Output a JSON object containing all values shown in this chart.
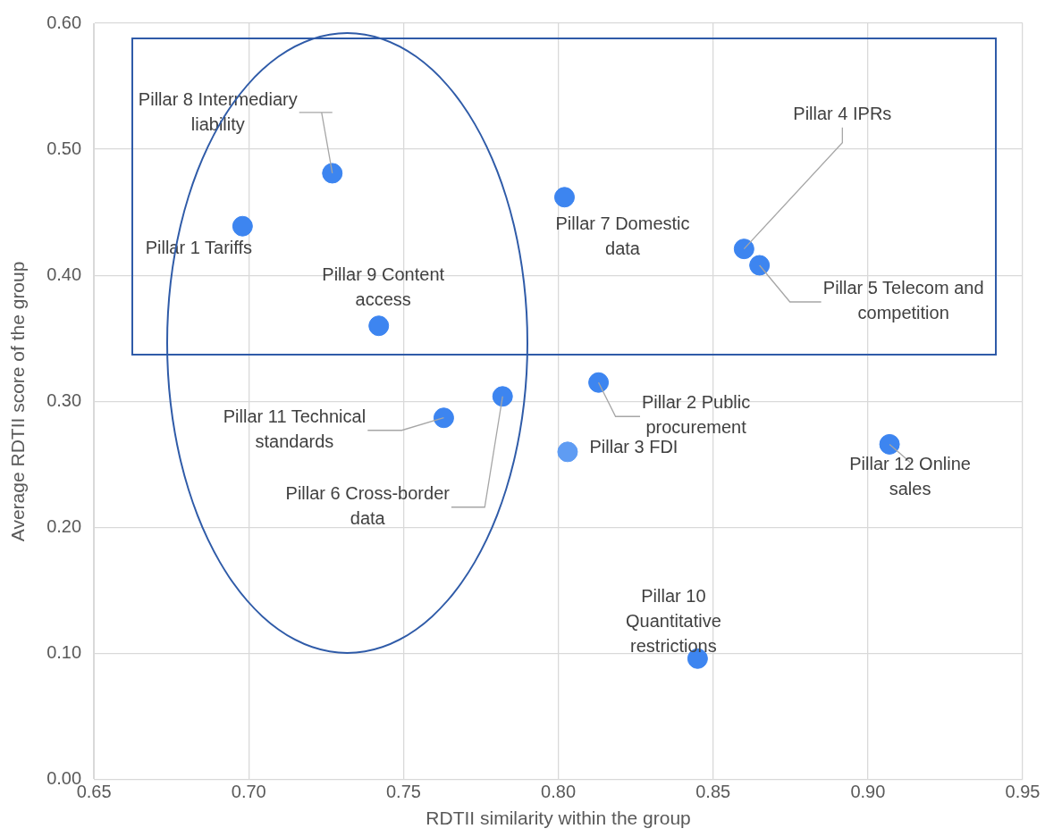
{
  "chart_data": {
    "type": "scatter",
    "xlabel": "RDTII similarity within the group",
    "ylabel": "Average RDTII score of the group",
    "xlim": [
      0.65,
      0.95
    ],
    "xticks": [
      {
        "value": 0.65,
        "label": "0.65"
      },
      {
        "value": 0.7,
        "label": "0.70"
      },
      {
        "value": 0.75,
        "label": "0.75"
      },
      {
        "value": 0.8,
        "label": "0.80"
      },
      {
        "value": 0.85,
        "label": "0.85"
      },
      {
        "value": 0.9,
        "label": "0.90"
      },
      {
        "value": 0.95,
        "label": "0.95"
      }
    ],
    "ylim": [
      0,
      0.6
    ],
    "yticks": [
      {
        "value": 0,
        "label": "0.00"
      },
      {
        "value": 0.1,
        "label": "0.10"
      },
      {
        "value": 0.2,
        "label": "0.20"
      },
      {
        "value": 0.3,
        "label": "0.30"
      },
      {
        "value": 0.4,
        "label": "0.40"
      },
      {
        "value": 0.5,
        "label": "0.50"
      },
      {
        "value": 0.6,
        "label": "0.60"
      }
    ],
    "grid": true,
    "legend": false,
    "marker": "circle",
    "series": [
      {
        "x": [
          0.698,
          0.727,
          0.742,
          0.802,
          0.86,
          0.865,
          0.813,
          0.763,
          0.782,
          0.803,
          0.907,
          0.845
        ],
        "values": [
          0.439,
          0.481,
          0.36,
          0.462,
          0.421,
          0.408,
          0.315,
          0.287,
          0.304,
          0.26,
          0.266,
          0.096
        ],
        "colors": [
          "#3d85f0",
          "#3d85f0",
          "#3d85f0",
          "#3d85f0",
          "#3d85f0",
          "#3d85f0",
          "#3d85f0",
          "#3d85f0",
          "#3d85f0",
          "#5f9cf3",
          "#3d85f0",
          "#3d85f0"
        ]
      }
    ],
    "annotations": [
      {
        "text": "Pillar 1 Tariffs",
        "x": 0.698,
        "y": 0.439
      },
      {
        "text": "Pillar 8 Intermediary liability",
        "x": 0.727,
        "y": 0.481
      },
      {
        "text": "Pillar 9 Content access",
        "x": 0.742,
        "y": 0.36
      },
      {
        "text": "Pillar 7 Domestic data",
        "x": 0.802,
        "y": 0.462
      },
      {
        "text": "Pillar 4 IPRs",
        "x": 0.86,
        "y": 0.421
      },
      {
        "text": "Pillar 5 Telecom and competition",
        "x": 0.865,
        "y": 0.408
      },
      {
        "text": "Pillar 2 Public procurement",
        "x": 0.813,
        "y": 0.315
      },
      {
        "text": "Pillar 11 Technical standards",
        "x": 0.763,
        "y": 0.287
      },
      {
        "text": "Pillar 6 Cross-border data",
        "x": 0.782,
        "y": 0.304
      },
      {
        "text": "Pillar 3 FDI",
        "x": 0.803,
        "y": 0.26
      },
      {
        "text": "Pillar 12 Online sales",
        "x": 0.907,
        "y": 0.266
      },
      {
        "text": "Pillar 10 Quantitative restrictions",
        "x": 0.845,
        "y": 0.096
      }
    ]
  }
}
